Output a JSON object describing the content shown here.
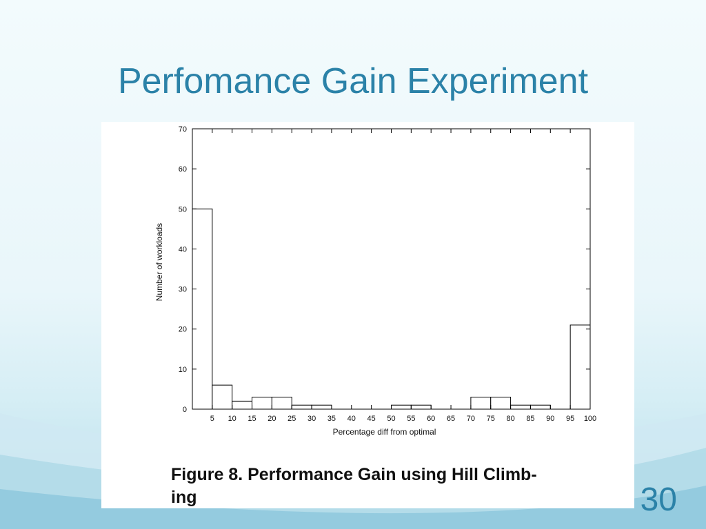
{
  "slide": {
    "title": "Perfomance Gain Experiment",
    "number": "30",
    "caption": "Figure 8. Performance Gain using Hill Climb-ing",
    "caption_lines": [
      "Figure 8. Performance Gain using Hill Climb-",
      "ing"
    ],
    "accent_color": "#2b82a8"
  },
  "chart_data": {
    "type": "bar",
    "title": "",
    "xlabel": "Percentage diff from optimal",
    "ylabel": "Number of workloads",
    "ylim": [
      0,
      70
    ],
    "xlim": [
      0,
      100
    ],
    "yticks": [
      0,
      10,
      20,
      30,
      40,
      50,
      60,
      70
    ],
    "xticks": [
      5,
      10,
      15,
      20,
      25,
      30,
      35,
      40,
      45,
      50,
      55,
      60,
      65,
      70,
      75,
      80,
      85,
      90,
      95,
      100
    ],
    "bin_width": 5,
    "categories": [
      5,
      10,
      15,
      20,
      25,
      30,
      35,
      40,
      45,
      50,
      55,
      60,
      65,
      70,
      75,
      80,
      85,
      90,
      95,
      100
    ],
    "values": [
      50,
      6,
      2,
      3,
      3,
      1,
      1,
      0,
      0,
      0,
      1,
      1,
      0,
      0,
      3,
      3,
      1,
      1,
      0,
      21
    ],
    "bar_color": "#ffffff",
    "bar_edge_color": "#000000",
    "grid": false
  }
}
